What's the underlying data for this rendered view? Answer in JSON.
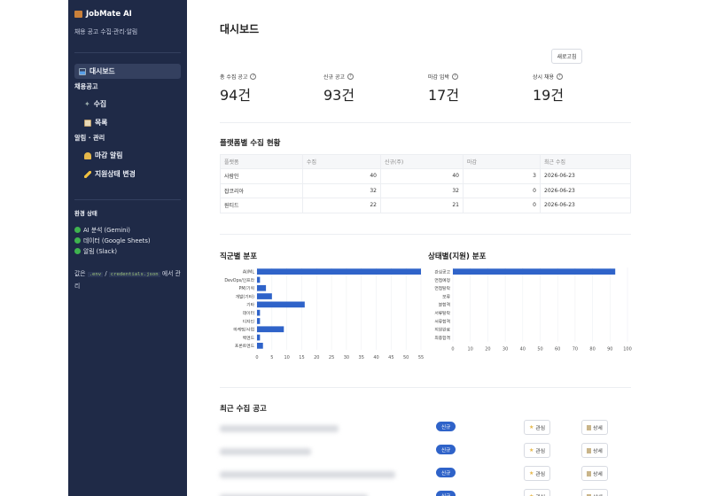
{
  "sidebar": {
    "brand": "JobMate AI",
    "subtitle": "채용 공고 수집·관리·알림",
    "nav": [
      {
        "label": "대시보드",
        "icon": "bar-chart-icon",
        "active": true
      },
      {
        "label": "채용공고",
        "group": true
      },
      {
        "label": "수집",
        "icon": "sparkle-icon"
      },
      {
        "label": "목록",
        "icon": "clipboard-icon"
      },
      {
        "label": "알림 · 관리",
        "group": true
      },
      {
        "label": "마감 알림",
        "icon": "bell-icon"
      },
      {
        "label": "지원상태 변경",
        "icon": "pencil-icon"
      }
    ],
    "env_title": "환경 상태",
    "env": [
      {
        "label": "AI 분석 (Gemini)",
        "status": "ok"
      },
      {
        "label": "데이터 (Google Sheets)",
        "status": "ok"
      },
      {
        "label": "알림 (Slack)",
        "status": "ok"
      }
    ],
    "note_prefix": "값은 ",
    "note_code1": ".env",
    "note_sep": " / ",
    "note_code2": "credentials.json",
    "note_suffix": " 에서 관리"
  },
  "header": {
    "title": "대시보드",
    "refresh_label": "새로고침"
  },
  "metrics": [
    {
      "label": "총 수집 공고",
      "value": "94건"
    },
    {
      "label": "신규 공고",
      "value": "93건"
    },
    {
      "label": "마감 임박",
      "value": "17건"
    },
    {
      "label": "상시 채용",
      "value": "19건"
    }
  ],
  "platform_section": {
    "title": "플랫폼별 수집 현황",
    "columns": [
      "플랫폼",
      "수집",
      "신규(주)",
      "마감",
      "최근 수집"
    ],
    "rows": [
      {
        "platform": "사람인",
        "collected": "40",
        "new": "40",
        "closing": "3",
        "recent": "2026-06-23"
      },
      {
        "platform": "잡코리아",
        "collected": "32",
        "new": "32",
        "closing": "0",
        "recent": "2026-06-23"
      },
      {
        "platform": "원티드",
        "collected": "22",
        "new": "21",
        "closing": "0",
        "recent": "2026-06-23"
      }
    ]
  },
  "chart_data": [
    {
      "type": "bar",
      "orientation": "horizontal",
      "title": "직군별 분포",
      "categories": [
        "AI/ML",
        "DevOps/인프라",
        "PM/기획",
        "개발(기타)",
        "기타",
        "데이터",
        "디자인",
        "마케팅/사업",
        "백엔드",
        "프론트엔드"
      ],
      "values": [
        55,
        1,
        3,
        5,
        16,
        1,
        1,
        9,
        1,
        2
      ],
      "xlim": [
        0,
        55
      ],
      "xticks": [
        0,
        5,
        10,
        15,
        20,
        25,
        30,
        35,
        40,
        45,
        50,
        55
      ],
      "color": "#2f63c9"
    },
    {
      "type": "bar",
      "orientation": "horizontal",
      "title": "상태별(지원) 분포",
      "categories": [
        "관심공고",
        "면접예정",
        "면접탈락",
        "보류",
        "불합격",
        "서류탈락",
        "서류합격",
        "지원완료",
        "최종합격"
      ],
      "values": [
        93,
        0,
        0,
        0,
        0,
        0,
        0,
        0,
        0
      ],
      "xlim": [
        0,
        100
      ],
      "xticks": [
        0,
        10,
        20,
        30,
        40,
        50,
        60,
        70,
        80,
        90,
        100
      ],
      "color": "#2f63c9"
    }
  ],
  "recent": {
    "title": "최근 수집 공고",
    "badge_label": "신규",
    "fav_label": "관심",
    "detail_label": "상세",
    "rows": 4
  }
}
